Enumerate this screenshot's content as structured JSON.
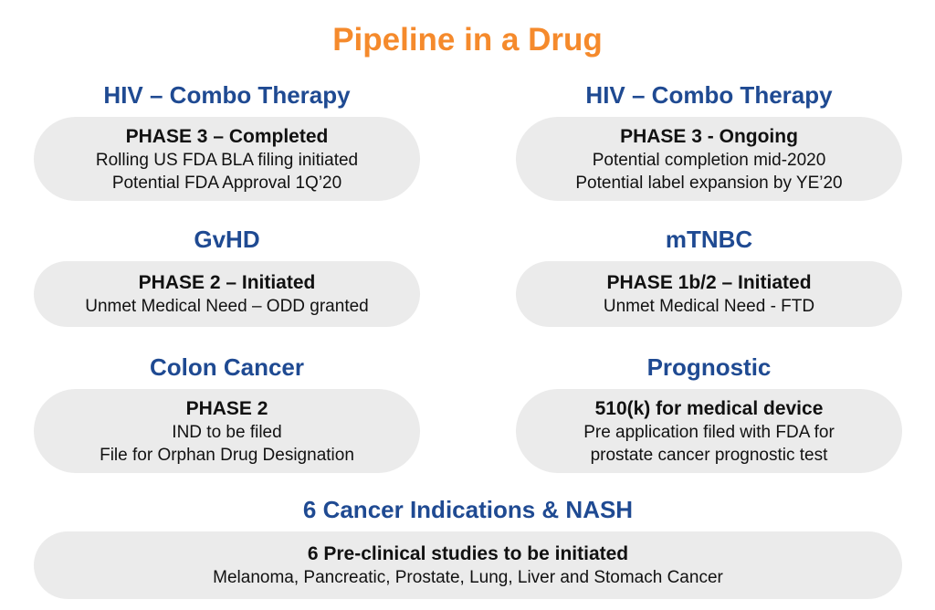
{
  "title": "Pipeline in a Drug",
  "colors": {
    "title": "#f58a2c",
    "heading": "#1f4a92",
    "box_background": "#ebebeb",
    "text": "#111111"
  },
  "cards": [
    {
      "heading": "HIV – Combo Therapy",
      "phase": "PHASE 3 – Completed",
      "lines": [
        "Rolling US FDA BLA filing initiated",
        "Potential FDA Approval 1Q’20"
      ]
    },
    {
      "heading": "HIV – Combo Therapy",
      "phase": "PHASE 3 - Ongoing",
      "lines": [
        "Potential completion mid-2020",
        "Potential label expansion by YE’20"
      ]
    },
    {
      "heading": "GvHD",
      "phase": "PHASE 2 – Initiated",
      "lines": [
        "Unmet Medical Need – ODD granted"
      ]
    },
    {
      "heading": "mTNBC",
      "phase": "PHASE 1b/2 – Initiated",
      "lines": [
        "Unmet Medical Need - FTD"
      ]
    },
    {
      "heading": "Colon Cancer",
      "phase": "PHASE 2",
      "lines": [
        "IND to be filed",
        "File for Orphan Drug Designation"
      ]
    },
    {
      "heading": "Prognostic",
      "phase": "510(k) for medical device",
      "lines": [
        "Pre application filed with FDA for",
        "prostate cancer prognostic test"
      ]
    },
    {
      "heading": "6 Cancer Indications & NASH",
      "phase": "6 Pre-clinical studies to be initiated",
      "lines": [
        "Melanoma, Pancreatic, Prostate, Lung, Liver and Stomach Cancer"
      ]
    }
  ]
}
